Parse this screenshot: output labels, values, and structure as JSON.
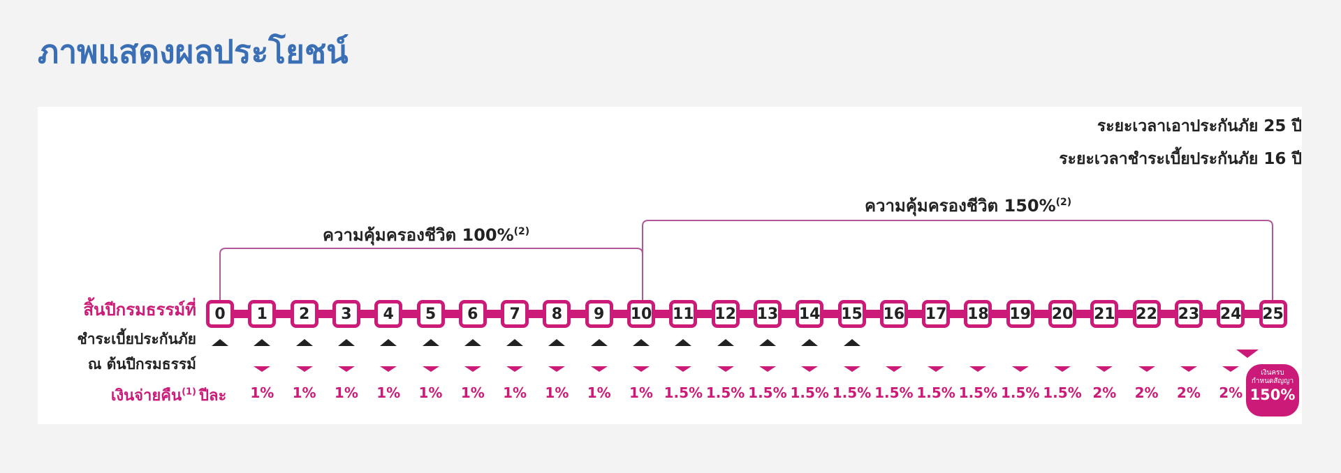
{
  "title": "ภาพแสดงผลประโยชน์",
  "info": {
    "coverage_period": "ระยะเวลาเอาประกันภัย 25 ปี",
    "payment_period": "ระยะเวลาชำระเบี้ยประกันภัย 16 ปี"
  },
  "brackets": {
    "first": {
      "label": "ความคุ้มครองชีวิต 100%",
      "note": "(2)"
    },
    "second": {
      "label": "ความคุ้มครองชีวิต 150%",
      "note": "(2)"
    }
  },
  "row_labels": {
    "policy_year_end": "สิ้นปีกรมธรรม์ที่",
    "premium_line1": "ชำระเบี้ยประกันภัย",
    "premium_line2": "ณ ต้นปีกรมธรรม์",
    "cash_back": "เงินจ่ายคืน",
    "cash_back_note": "(1)",
    "per_year": "ปีละ"
  },
  "years": [
    "0",
    "1",
    "2",
    "3",
    "4",
    "5",
    "6",
    "7",
    "8",
    "9",
    "10",
    "11",
    "12",
    "13",
    "14",
    "15",
    "16",
    "17",
    "18",
    "19",
    "20",
    "21",
    "22",
    "23",
    "24",
    "25"
  ],
  "premium_payment_years": 16,
  "cash_back_rates": [
    "1%",
    "1%",
    "1%",
    "1%",
    "1%",
    "1%",
    "1%",
    "1%",
    "1%",
    "1%",
    "1.5%",
    "1.5%",
    "1.5%",
    "1.5%",
    "1.5%",
    "1.5%",
    "1.5%",
    "1.5%",
    "1.5%",
    "1.5%",
    "2%",
    "2%",
    "2%",
    "2%"
  ],
  "maturity": {
    "line1": "เงินครบ",
    "line2": "กำหนดสัญญา",
    "value": "150%"
  },
  "colors": {
    "title": "#3a6fb5",
    "accent": "#cc1a78",
    "text": "#222222"
  }
}
